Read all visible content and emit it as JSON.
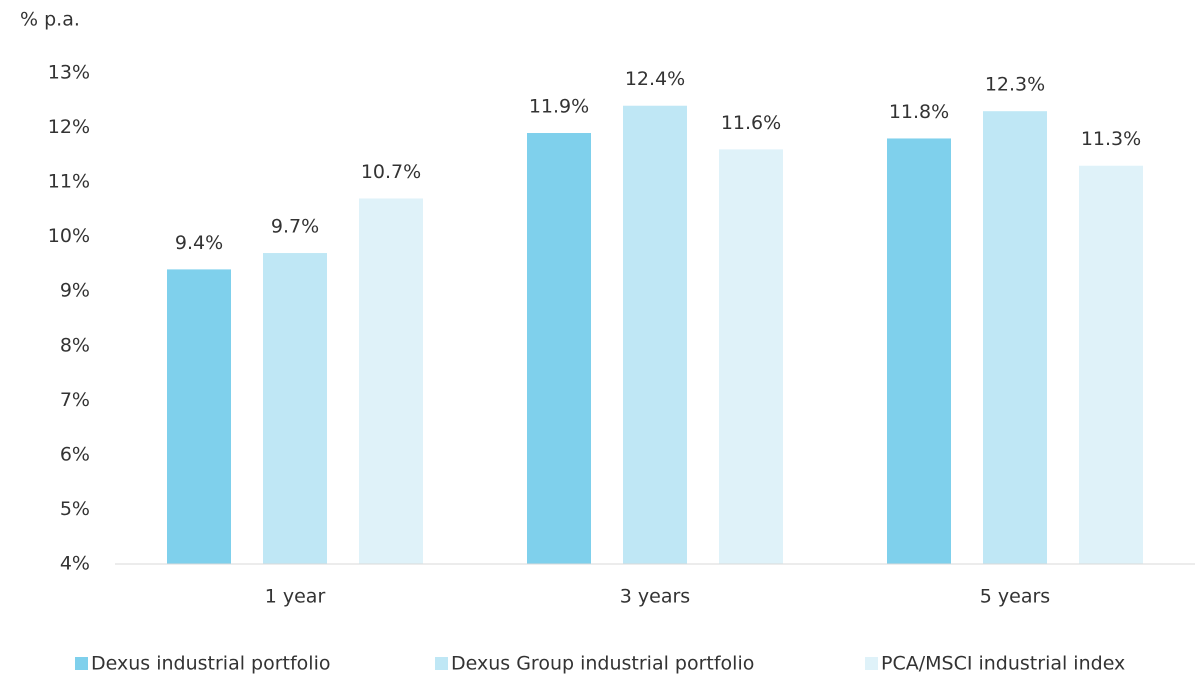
{
  "chart_data": {
    "type": "bar",
    "y_axis_label": "% p.a.",
    "categories": [
      "1 year",
      "3 years",
      "5 years"
    ],
    "series": [
      {
        "name": "Dexus industrial portfolio",
        "color": "#7fd0ec",
        "values": [
          9.4,
          11.9,
          11.8
        ],
        "value_labels": [
          "9.4%",
          "11.9%",
          "11.8%"
        ]
      },
      {
        "name": "Dexus Group industrial portfolio",
        "color": "#bfe7f5",
        "values": [
          9.7,
          12.4,
          12.3
        ],
        "value_labels": [
          "9.7%",
          "12.4%",
          "12.3%"
        ]
      },
      {
        "name": "PCA/MSCI industrial index",
        "color": "#dff2f9",
        "values": [
          10.7,
          11.6,
          11.3
        ],
        "value_labels": [
          "10.7%",
          "11.6%",
          "11.3%"
        ]
      }
    ],
    "ylim": [
      4,
      13
    ],
    "yticks": [
      {
        "value": 4,
        "label": "4%"
      },
      {
        "value": 5,
        "label": "5%"
      },
      {
        "value": 6,
        "label": "6%"
      },
      {
        "value": 7,
        "label": "7%"
      },
      {
        "value": 8,
        "label": "8%"
      },
      {
        "value": 9,
        "label": "9%"
      },
      {
        "value": 10,
        "label": "10%"
      },
      {
        "value": 11,
        "label": "11%"
      },
      {
        "value": 12,
        "label": "12%"
      },
      {
        "value": 13,
        "label": "13%"
      }
    ],
    "grid": false,
    "legend": "bottom"
  }
}
